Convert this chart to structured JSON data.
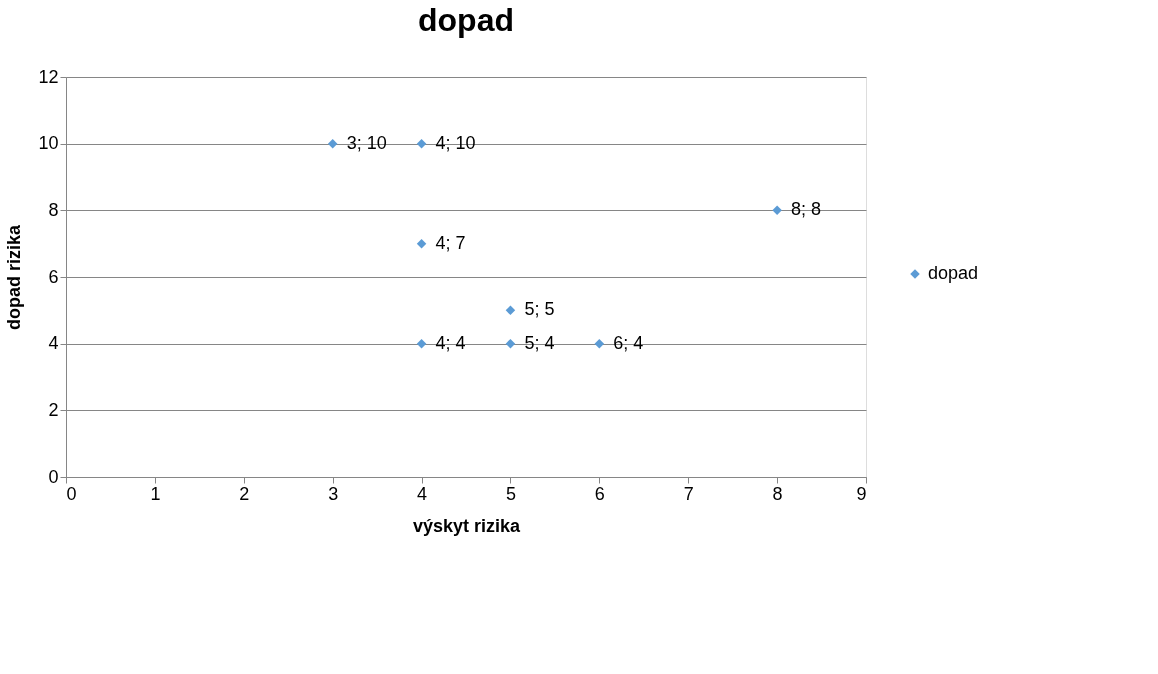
{
  "chart_data": {
    "type": "scatter",
    "title": "dopad",
    "xlabel": "výskyt rizika",
    "ylabel": "dopad rizika",
    "series": [
      {
        "name": "dopad",
        "color": "#5b9bd5",
        "x": [
          3,
          4,
          4,
          5,
          4,
          5,
          6,
          8
        ],
        "values": [
          10,
          10,
          7,
          5,
          4,
          4,
          4,
          8
        ],
        "value_labels": [
          "3; 10",
          "4; 10",
          "4; 7",
          "5; 5",
          "4; 4",
          "5; 4",
          "6; 4",
          "8; 8"
        ]
      }
    ],
    "xlim": [
      0,
      9
    ],
    "xticks": [
      0,
      1,
      2,
      3,
      4,
      5,
      6,
      7,
      8,
      9
    ],
    "ylim": [
      0,
      12
    ],
    "yticks": [
      0,
      2,
      4,
      6,
      8,
      10,
      12
    ],
    "grid": "y",
    "legend": "right",
    "marker": "diamond"
  }
}
